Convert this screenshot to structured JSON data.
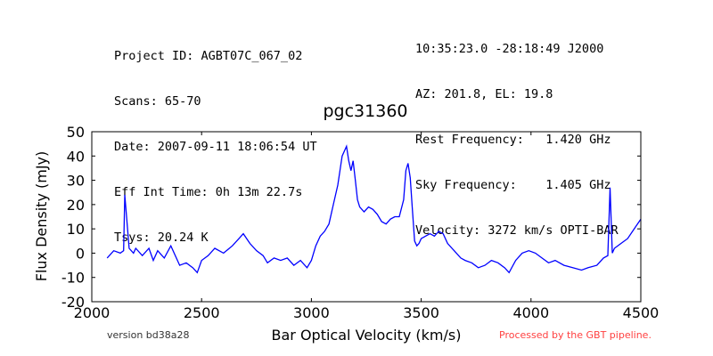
{
  "header_left": [
    "Project ID: AGBT07C_067_02",
    "Scans: 65-70",
    "Date: 2007-09-11 18:06:54 UT",
    "Eff Int Time: 0h 13m 22.7s",
    "Tsys: 20.24 K"
  ],
  "header_right": [
    "10:35:23.0 -28:18:49 J2000",
    "AZ: 201.8, EL: 19.8",
    "Rest Frequency:   1.420 GHz",
    "Sky Frequency:    1.405 GHz",
    "Velocity: 3272 km/s OPTI-BAR"
  ],
  "footer": {
    "version": "version bd38a28",
    "pipeline": "Processed by the GBT pipeline."
  },
  "colors": {
    "line": "#0000ff",
    "pipeline_text": "#ff4040"
  },
  "chart_data": {
    "type": "line",
    "title": "pgc31360",
    "xlabel": "Bar Optical Velocity (km/s)",
    "ylabel": "Flux Density (mJy)",
    "xlim": [
      2000,
      4500
    ],
    "ylim": [
      -20,
      50
    ],
    "xticks": [
      2000,
      2500,
      3000,
      3500,
      4000,
      4500
    ],
    "yticks": [
      -20,
      -10,
      0,
      10,
      20,
      30,
      40,
      50
    ],
    "grid": false,
    "series": [
      {
        "x": [
          2070,
          2100,
          2130,
          2145,
          2150,
          2170,
          2190,
          2200,
          2230,
          2260,
          2280,
          2300,
          2330,
          2360,
          2400,
          2430,
          2460,
          2480,
          2500,
          2530,
          2560,
          2600,
          2640,
          2670,
          2690,
          2720,
          2750,
          2780,
          2800,
          2830,
          2860,
          2890,
          2920,
          2950,
          2980,
          3000,
          3020,
          3040,
          3060,
          3080,
          3100,
          3120,
          3140,
          3160,
          3170,
          3180,
          3190,
          3200,
          3210,
          3220,
          3240,
          3260,
          3280,
          3300,
          3320,
          3340,
          3360,
          3380,
          3400,
          3420,
          3430,
          3440,
          3450,
          3460,
          3470,
          3480,
          3490,
          3500,
          3520,
          3540,
          3560,
          3580,
          3600,
          3620,
          3650,
          3680,
          3700,
          3730,
          3760,
          3790,
          3820,
          3850,
          3880,
          3900,
          3930,
          3960,
          3990,
          4020,
          4050,
          4080,
          4110,
          4150,
          4190,
          4230,
          4260,
          4300,
          4330,
          4350,
          4360,
          4370,
          4380,
          4410,
          4440,
          4470,
          4500
        ],
        "y": [
          -2,
          1,
          0,
          1,
          24,
          2,
          0,
          2,
          -1,
          2,
          -3,
          1,
          -2,
          3,
          -5,
          -4,
          -6,
          -8,
          -3,
          -1,
          2,
          0,
          3,
          6,
          8,
          4,
          1,
          -1,
          -4,
          -2,
          -3,
          -2,
          -5,
          -3,
          -6,
          -3,
          3,
          7,
          9,
          12,
          20,
          28,
          40,
          44,
          38,
          34,
          38,
          30,
          22,
          19,
          17,
          19,
          18,
          16,
          13,
          12,
          14,
          15,
          15,
          22,
          34,
          37,
          31,
          18,
          5,
          3,
          4,
          6,
          7,
          8,
          7,
          9,
          8,
          4,
          1,
          -2,
          -3,
          -4,
          -6,
          -5,
          -3,
          -4,
          -6,
          -8,
          -3,
          0,
          1,
          0,
          -2,
          -4,
          -3,
          -5,
          -6,
          -7,
          -6,
          -5,
          -2,
          -1,
          27,
          0,
          2,
          4,
          6,
          10,
          14
        ]
      }
    ]
  }
}
